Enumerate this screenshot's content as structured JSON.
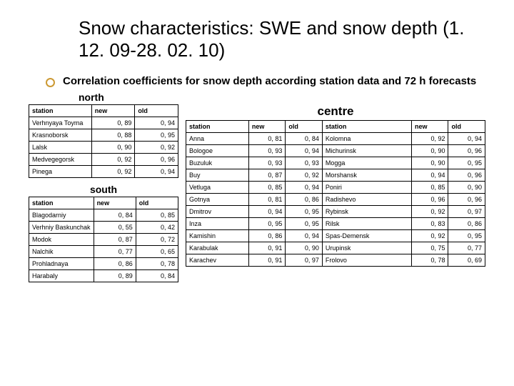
{
  "title": "Snow characteristics: SWE and snow depth (1. 12. 09-28. 02. 10)",
  "subtitle": "Correlation coefficients for snow depth according station data and 72 h forecasts",
  "north": {
    "label": "north",
    "headers": [
      "station",
      "new",
      "old"
    ],
    "rows": [
      [
        "Verhnyaya Toyma",
        "0, 89",
        "0, 94"
      ],
      [
        "Krasnoborsk",
        "0, 88",
        "0, 95"
      ],
      [
        "Lalsk",
        "0, 90",
        "0, 92"
      ],
      [
        "Medvegegorsk",
        "0, 92",
        "0, 96"
      ],
      [
        "Pinega",
        "0, 92",
        "0, 94"
      ]
    ]
  },
  "south": {
    "label": "south",
    "headers": [
      "station",
      "new",
      "old"
    ],
    "rows": [
      [
        "Blagodarniy",
        "0, 84",
        "0, 85"
      ],
      [
        "Verhniy Baskunchak",
        "0, 55",
        "0, 42"
      ],
      [
        "Modok",
        "0, 87",
        "0, 72"
      ],
      [
        "Nalchik",
        "0, 77",
        "0, 65"
      ],
      [
        "Prohladnaya",
        "0, 86",
        "0, 78"
      ],
      [
        "Harabaly",
        "0, 89",
        "0, 84"
      ]
    ]
  },
  "centre": {
    "label": "centre",
    "headers": [
      "station",
      "new",
      "old",
      "station",
      "new",
      "old"
    ],
    "rows": [
      [
        "Anna",
        "0, 81",
        "0, 84",
        "Kolomna",
        "0, 92",
        "0, 94"
      ],
      [
        "Bologoe",
        "0, 93",
        "0, 94",
        "Michurinsk",
        "0, 90",
        "0, 96"
      ],
      [
        "Buzuluk",
        "0, 93",
        "0, 93",
        "Mogga",
        "0, 90",
        "0, 95"
      ],
      [
        "Buy",
        "0, 87",
        "0, 92",
        "Morshansk",
        "0, 94",
        "0, 96"
      ],
      [
        "Vetluga",
        "0, 85",
        "0, 94",
        "Poniri",
        "0, 85",
        "0, 90"
      ],
      [
        "Gotnya",
        "0, 81",
        "0, 86",
        "Radishevo",
        "0, 96",
        "0, 96"
      ],
      [
        "Dmitrov",
        "0, 94",
        "0, 95",
        "Rybinsk",
        "0, 92",
        "0, 97"
      ],
      [
        "Inza",
        "0, 95",
        "0, 95",
        "Rilsk",
        "0, 83",
        "0, 86"
      ],
      [
        "Kamishin",
        "0, 86",
        "0, 94",
        "Spas-Demensk",
        "0, 92",
        "0, 95"
      ],
      [
        "Karabulak",
        "0, 91",
        "0, 90",
        "Urupinsk",
        "0, 75",
        "0, 77"
      ],
      [
        "Karachev",
        "0, 91",
        "0, 97",
        "Frolovo",
        "0, 78",
        "0, 69"
      ]
    ]
  }
}
